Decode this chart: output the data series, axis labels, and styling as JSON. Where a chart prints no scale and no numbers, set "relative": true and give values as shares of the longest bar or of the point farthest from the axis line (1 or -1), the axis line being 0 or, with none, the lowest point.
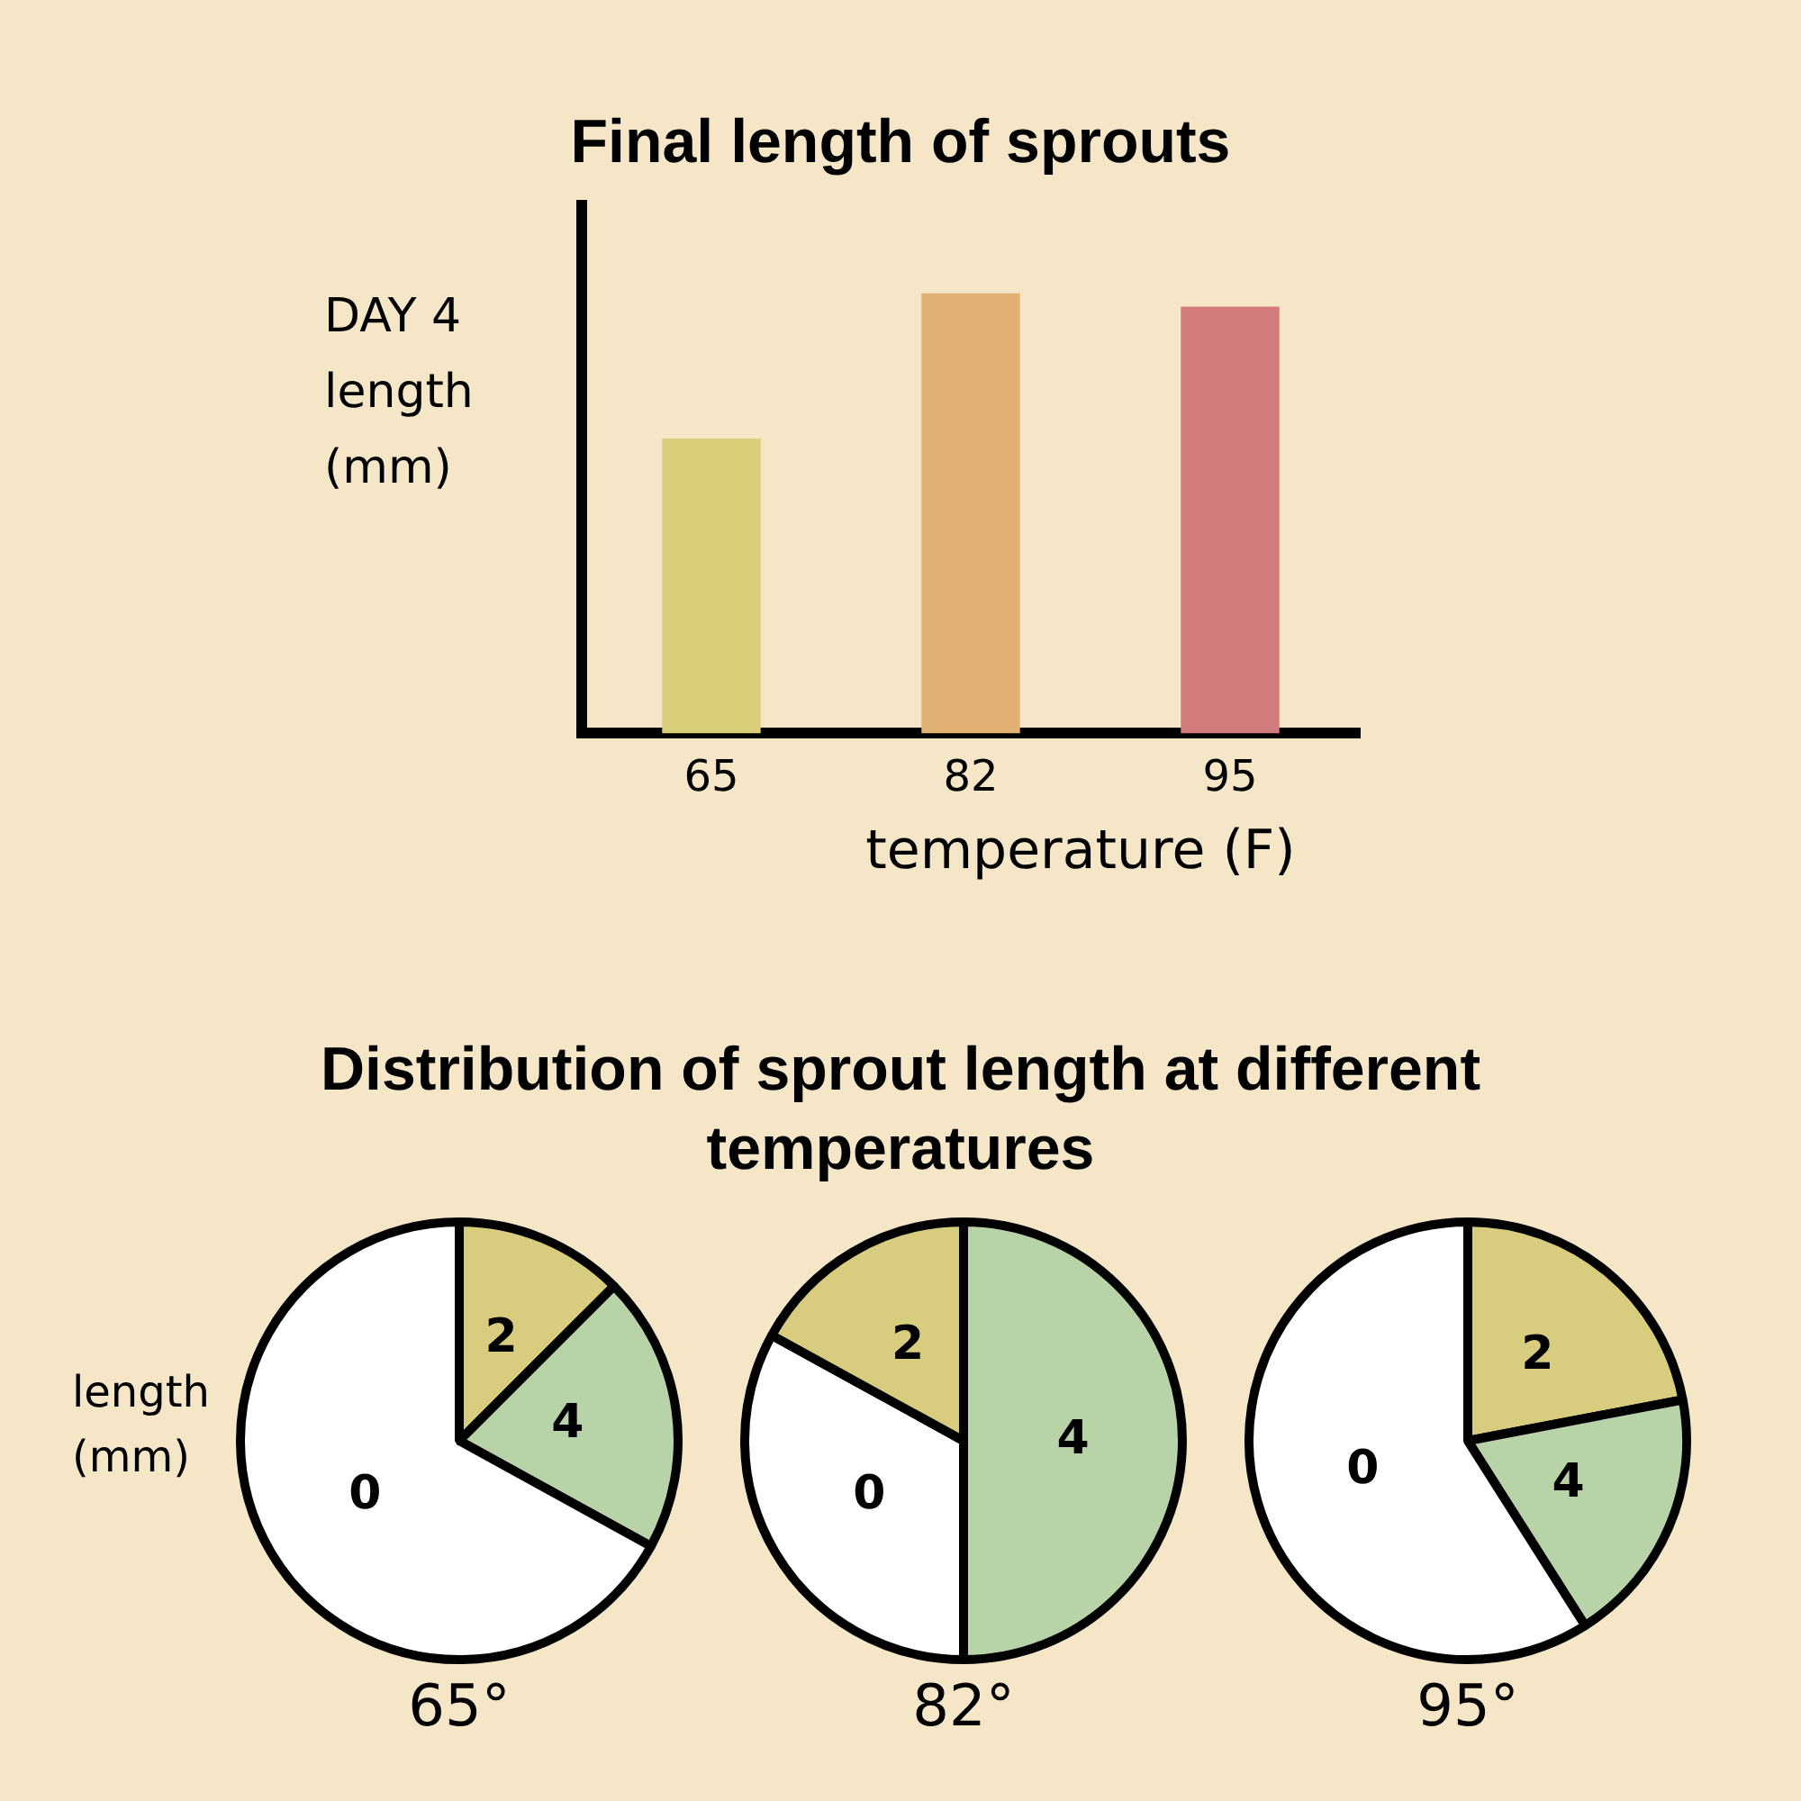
{
  "chart_data": [
    {
      "type": "bar",
      "title": "Final length of sprouts",
      "ylabel": "DAY 4 length (mm)",
      "xlabel": "temperature (F)",
      "categories": [
        "65",
        "82",
        "95"
      ],
      "values": [
        0.67,
        1,
        0.97
      ],
      "colors": [
        "#d9cf7a",
        "#e0b173",
        "#d17b7d"
      ],
      "relative": true
    },
    {
      "type": "pie",
      "title": "Distribution of sprout length at different temperatures",
      "ylabel": "length (mm)",
      "xlabel": "65°",
      "categories": [
        "2",
        "4",
        "0"
      ],
      "values": [
        12.5,
        20.5,
        67
      ],
      "colors": [
        "#d8cd7e",
        "#b8d3a8",
        "#ffffff"
      ]
    },
    {
      "type": "pie",
      "xlabel": "82°",
      "categories": [
        "4",
        "0",
        "2"
      ],
      "values": [
        50,
        33,
        17
      ],
      "colors": [
        "#b8d3a8",
        "#ffffff",
        "#d8cd7e"
      ]
    },
    {
      "type": "pie",
      "xlabel": "95°",
      "categories": [
        "2",
        "4",
        "0"
      ],
      "values": [
        22,
        19,
        59
      ],
      "colors": [
        "#d8cd7e",
        "#b8d3a8",
        "#ffffff"
      ]
    }
  ]
}
